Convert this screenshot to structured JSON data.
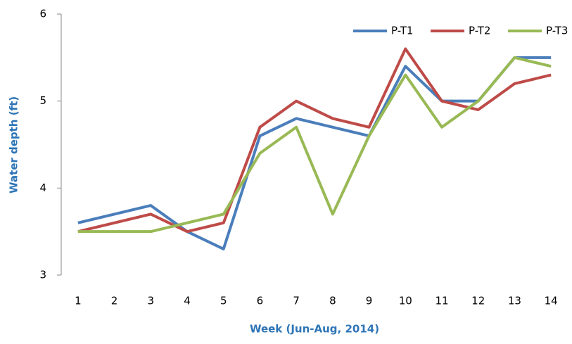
{
  "chart_data": {
    "type": "line",
    "y_label": "Water depth (ft)",
    "x_label": "Week (Jun-Aug, 2014)",
    "categories": [
      1,
      2,
      3,
      4,
      5,
      6,
      7,
      8,
      9,
      10,
      11,
      12,
      13,
      14
    ],
    "series": [
      {
        "name": "P-T1",
        "color": "#4a7ebb",
        "values": [
          3.6,
          3.7,
          3.8,
          3.5,
          3.3,
          4.6,
          4.8,
          4.7,
          4.6,
          5.4,
          5.0,
          5.0,
          5.5,
          5.5
        ]
      },
      {
        "name": "P-T2",
        "color": "#be4b48",
        "values": [
          3.5,
          3.6,
          3.7,
          3.5,
          3.6,
          4.7,
          5.0,
          4.8,
          4.7,
          5.6,
          5.0,
          4.9,
          5.2,
          5.3
        ]
      },
      {
        "name": "P-T3",
        "color": "#98b954",
        "values": [
          3.5,
          3.5,
          3.5,
          3.6,
          3.7,
          4.4,
          4.7,
          3.7,
          4.6,
          5.3,
          4.7,
          5.0,
          5.5,
          5.4
        ]
      }
    ],
    "ylim": [
      3,
      6
    ],
    "yticks": [
      3,
      4,
      5,
      6
    ],
    "grid": false,
    "legend": "top-right"
  }
}
